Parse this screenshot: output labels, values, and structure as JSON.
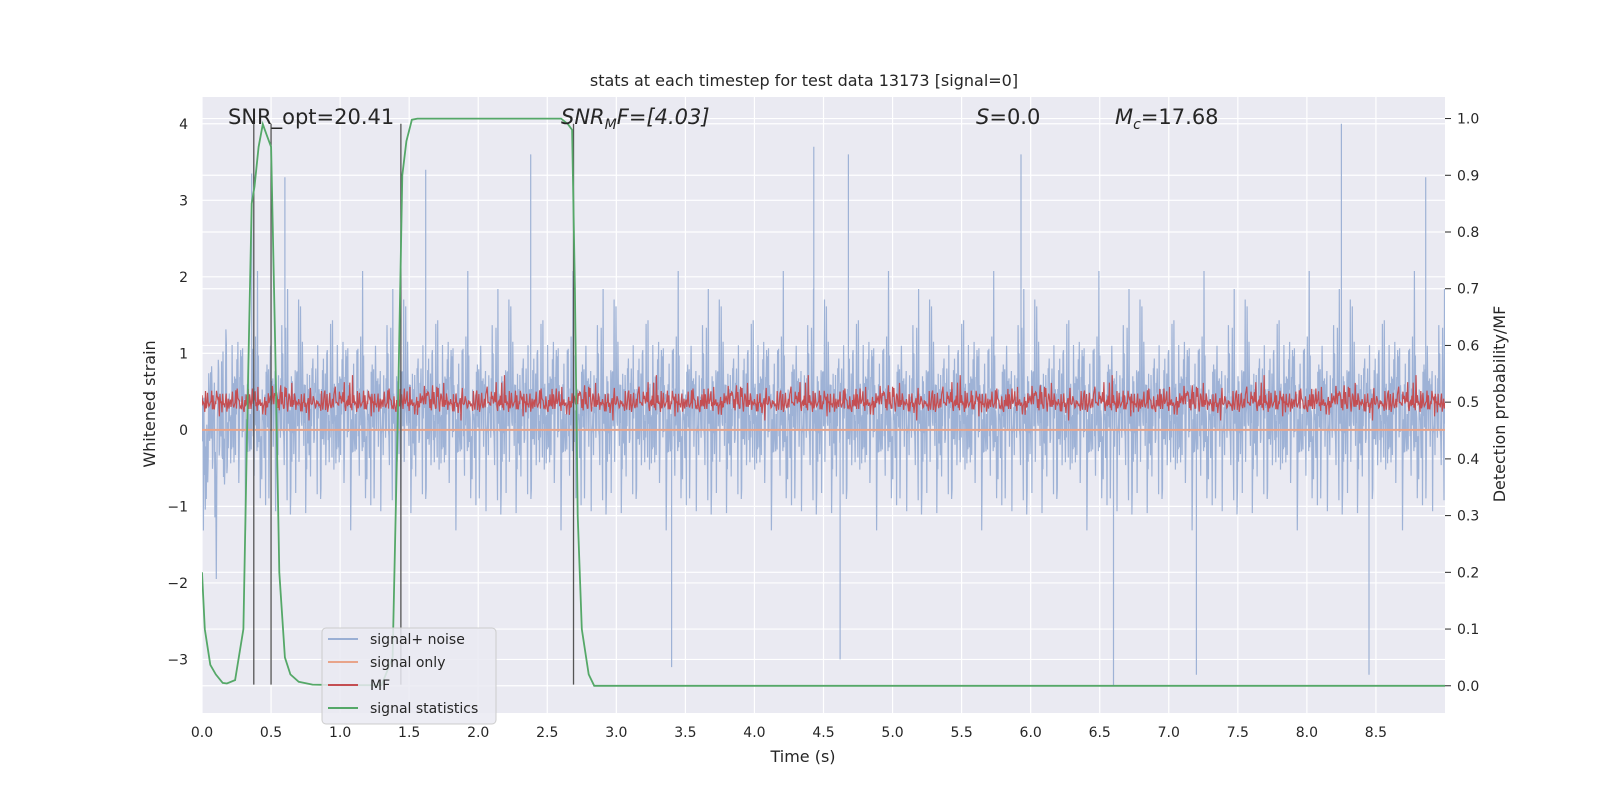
{
  "chart_data": {
    "type": "line",
    "title": "stats at each timestep for test data 13173 [signal=0]",
    "xlabel": "Time (s)",
    "ylabel_left": "Whitened strain",
    "ylabel_right": "Detection probability/MF",
    "xlim": [
      0.0,
      9.0
    ],
    "ylim_left": [
      -3.7,
      4.35
    ],
    "ylim_right": [
      -0.048,
      1.038
    ],
    "x_ticks": [
      "0.0",
      "0.5",
      "1.0",
      "1.5",
      "2.0",
      "2.5",
      "3.0",
      "3.5",
      "4.0",
      "4.5",
      "5.0",
      "5.5",
      "6.0",
      "6.5",
      "7.0",
      "7.5",
      "8.0",
      "8.5"
    ],
    "y_ticks_left": [
      "−3",
      "−2",
      "−1",
      "0",
      "1",
      "2",
      "3",
      "4"
    ],
    "y_ticks_right": [
      "0.0",
      "0.1",
      "0.2",
      "0.3",
      "0.4",
      "0.5",
      "0.6",
      "0.7",
      "0.8",
      "0.9",
      "1.0"
    ],
    "grid": true,
    "background": "#eaeaf2",
    "annotations": {
      "snr_opt": "SNR_opt=20.41",
      "snr_mf_main": "SNR",
      "snr_mf_sub": "M",
      "snr_mf_rest": "F=[4.03]",
      "s_main": "S",
      "s_rest": "=0.0",
      "mc_main": "M",
      "mc_sub": "c",
      "mc_rest": "=17.68"
    },
    "vertical_lines_x": [
      0.375,
      0.5,
      1.44,
      2.69
    ],
    "legend": {
      "placement": "lower-left",
      "entries": [
        {
          "label": "signal+ noise",
          "color": "#9aafd4"
        },
        {
          "label": "signal only",
          "color": "#e8a48a"
        },
        {
          "label": "MF",
          "color": "#c44e52"
        },
        {
          "label": "signal statistics",
          "color": "#55a868"
        }
      ]
    },
    "series": [
      {
        "name": "signal+ noise",
        "axis": "left",
        "color": "#9aafd4",
        "description_stats": {
          "x_range": [
            0.0,
            9.0
          ],
          "approx_range": [
            -3.4,
            4.0
          ]
        },
        "peaks": [
          [
            0.36,
            3.35
          ],
          [
            0.6,
            3.3
          ],
          [
            1.62,
            3.4
          ],
          [
            2.38,
            3.6
          ],
          [
            4.43,
            3.7
          ],
          [
            4.68,
            3.6
          ],
          [
            5.93,
            3.6
          ],
          [
            8.25,
            4.0
          ],
          [
            8.86,
            3.3
          ],
          [
            6.6,
            -3.35
          ],
          [
            7.2,
            -3.2
          ],
          [
            8.45,
            -3.2
          ],
          [
            4.62,
            -3.0
          ],
          [
            3.4,
            -3.1
          ]
        ]
      },
      {
        "name": "signal only",
        "axis": "left",
        "color": "#e8a48a",
        "values_constant": 0.0
      },
      {
        "name": "MF",
        "axis": "right",
        "color": "#c44e52",
        "baseline": 0.5,
        "approx_range": [
          0.455,
          0.585
        ]
      },
      {
        "name": "signal statistics",
        "axis": "right",
        "color": "#55a868",
        "x": [
          0.0,
          0.02,
          0.06,
          0.1,
          0.15,
          0.18,
          0.24,
          0.3,
          0.33,
          0.36,
          0.38,
          0.41,
          0.44,
          0.47,
          0.5,
          0.53,
          0.56,
          0.6,
          0.64,
          0.7,
          0.8,
          1.0,
          1.3,
          1.38,
          1.42,
          1.45,
          1.48,
          1.52,
          1.56,
          1.6,
          1.8,
          2.0,
          2.3,
          2.6,
          2.65,
          2.68,
          2.7,
          2.72,
          2.75,
          2.8,
          2.84,
          3.0,
          4.0,
          5.0,
          6.0,
          7.0,
          8.0,
          9.0
        ],
        "y": [
          0.2,
          0.1,
          0.037,
          0.02,
          0.005,
          0.004,
          0.01,
          0.1,
          0.5,
          0.85,
          0.88,
          0.95,
          0.99,
          0.97,
          0.95,
          0.6,
          0.2,
          0.05,
          0.02,
          0.007,
          0.002,
          0.001,
          0.001,
          0.05,
          0.5,
          0.9,
          0.96,
          0.998,
          1.0,
          1.0,
          1.0,
          1.0,
          1.0,
          1.0,
          0.99,
          0.98,
          0.7,
          0.3,
          0.1,
          0.02,
          0.0,
          0.0,
          0.0,
          0.0,
          0.0,
          0.0,
          0.0,
          0.0
        ]
      }
    ]
  }
}
